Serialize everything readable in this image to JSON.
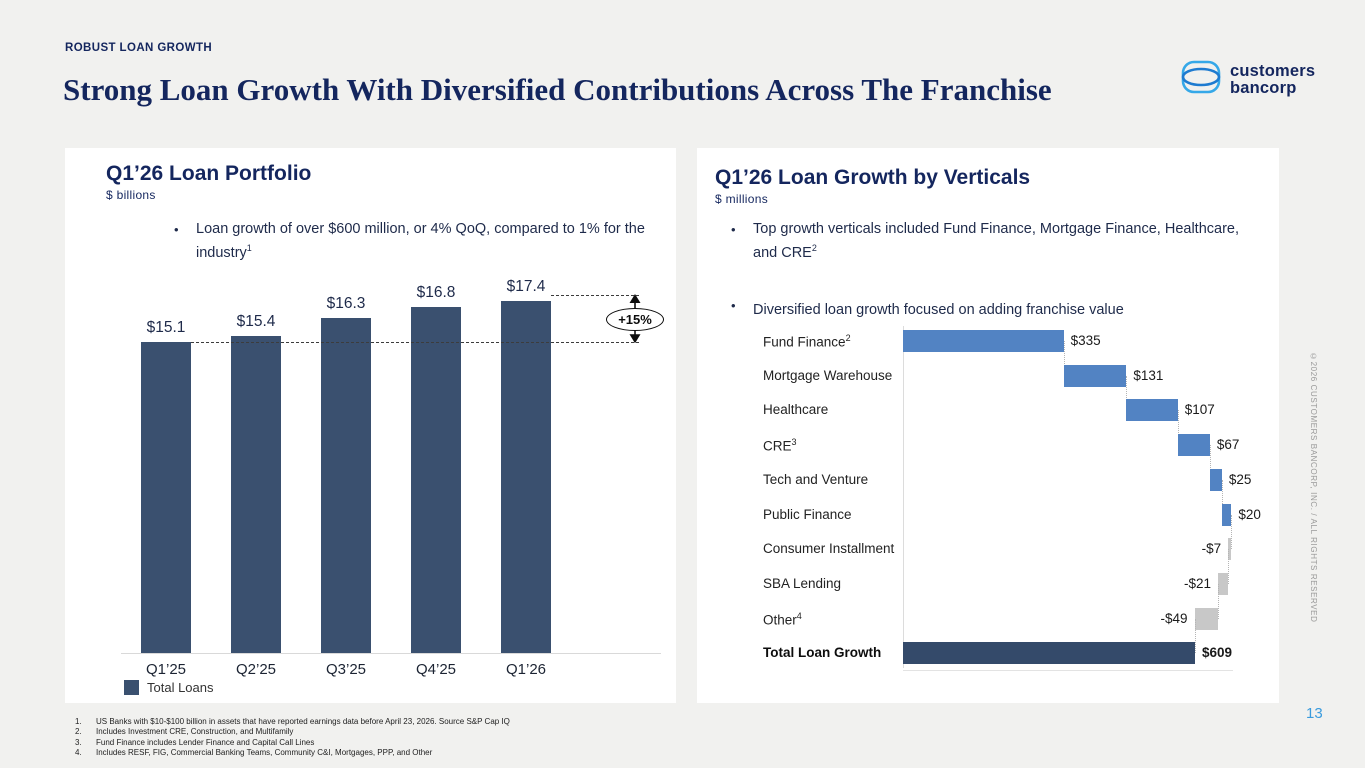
{
  "page": {
    "eyebrow": "ROBUST LOAN GROWTH",
    "title": "Strong Loan Growth With Diversified Contributions Across The Franchise",
    "page_number": "13",
    "copyright_vertical": "©2026 CUSTOMERS BANCORP, INC. / ALL RIGHTS RESERVED",
    "logo": {
      "line1": "customers",
      "line2": "bancorp"
    }
  },
  "left_panel": {
    "title": "Q1’26 Loan Portfolio",
    "subtitle": "$ billions",
    "bullets": [
      {
        "text": "Loan growth of over $600 million, or 4% QoQ, compared to 1% for the industry",
        "sup": "1"
      }
    ]
  },
  "right_panel": {
    "title": "Q1’26 Loan Growth by Verticals",
    "subtitle": "$ millions",
    "bullets": [
      {
        "text": "Top growth verticals included Fund Finance, Mortgage Finance, Healthcare, and CRE",
        "sup": "2"
      },
      {
        "text": "Diversified loan growth focused on adding franchise value",
        "sup": ""
      }
    ]
  },
  "chart_data": [
    {
      "type": "bar",
      "title": "Q1’26 Loan Portfolio",
      "ylabel": "$ billions",
      "categories": [
        "Q1’25",
        "Q2’25",
        "Q3’25",
        "Q4’25",
        "Q1’26"
      ],
      "values": [
        15.1,
        15.4,
        16.3,
        16.8,
        17.4
      ],
      "value_labels": [
        "$15.1",
        "$15.4",
        "$16.3",
        "$16.8",
        "$17.4"
      ],
      "legend": [
        "Total Loans"
      ],
      "legend_position": "bottom-left",
      "annotation": "+15%",
      "ylim": [
        0,
        18.2
      ],
      "grid": false,
      "bar_color": "#3a506f"
    },
    {
      "type": "bar",
      "subtype": "horizontal-waterfall",
      "title": "Q1’26 Loan Growth by Verticals",
      "xlabel": "$ millions",
      "xlim": [
        0,
        720
      ],
      "grid": false,
      "items": [
        {
          "label": "Fund Finance",
          "sup": "2",
          "value": 335,
          "display": "$335"
        },
        {
          "label": "Mortgage Warehouse",
          "sup": "",
          "value": 131,
          "display": "$131"
        },
        {
          "label": "Healthcare",
          "sup": "",
          "value": 107,
          "display": "$107"
        },
        {
          "label": "CRE",
          "sup": "3",
          "value": 67,
          "display": "$67"
        },
        {
          "label": "Tech and Venture",
          "sup": "",
          "value": 25,
          "display": "$25"
        },
        {
          "label": "Public Finance",
          "sup": "",
          "value": 20,
          "display": "$20"
        },
        {
          "label": "Consumer Installment",
          "sup": "",
          "value": -7,
          "display": "-$7"
        },
        {
          "label": "SBA Lending",
          "sup": "",
          "value": -21,
          "display": "-$21"
        },
        {
          "label": "Other",
          "sup": "4",
          "value": -49,
          "display": "-$49"
        }
      ],
      "total": {
        "label": "Total Loan Growth",
        "value": 609,
        "display": "$609"
      },
      "colors": {
        "positive": "#5283c3",
        "negative": "#c8c8c8",
        "total": "#344a6a"
      }
    }
  ],
  "footnotes": [
    {
      "num": "1.",
      "text": "US Banks with $10-$100 billion in assets that have reported earnings data before April 23, 2026. Source S&P Cap IQ"
    },
    {
      "num": "2.",
      "text": "Includes Investment CRE, Construction, and Multifamily"
    },
    {
      "num": "3.",
      "text": "Fund Finance includes Lender Finance and Capital Call Lines"
    },
    {
      "num": "4.",
      "text": "Includes RESF, FIG, Commercial Banking Teams, Community C&I, Mortgages, PPP, and Other"
    }
  ],
  "colors": {
    "accent_navy": "#14265e",
    "bar_navy": "#3a506f",
    "waterfall_blue": "#5283c3",
    "waterfall_gray": "#c8c8c8",
    "total_navy": "#344a6a",
    "logo_blue": "#2fa3e5",
    "page_number_blue": "#3a9bdd",
    "background": "#f1f1ef"
  }
}
